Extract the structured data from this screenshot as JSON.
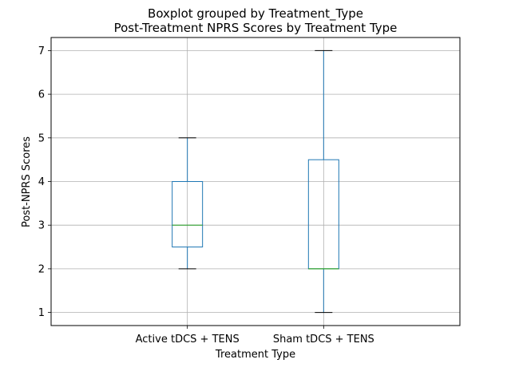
{
  "chart_data": {
    "type": "boxplot",
    "suptitle": "Boxplot grouped by Treatment_Type",
    "title": "Post-Treatment NPRS Scores by Treatment Type",
    "xlabel": "Treatment Type",
    "ylabel": "Post-NPRS Scores",
    "ylim": [
      0.7,
      7.3
    ],
    "yticks": [
      1,
      2,
      3,
      4,
      5,
      6,
      7
    ],
    "grid": true,
    "categories": [
      "Active tDCS + TENS",
      "Sham tDCS + TENS"
    ],
    "boxes": [
      {
        "category": "Active tDCS + TENS",
        "whisker_low": 2,
        "q1": 2.5,
        "median": 3,
        "q3": 4,
        "whisker_high": 5
      },
      {
        "category": "Sham tDCS + TENS",
        "whisker_low": 1,
        "q1": 2,
        "median": 2,
        "q3": 4.5,
        "whisker_high": 7
      }
    ],
    "colors": {
      "box": "#1f77b4",
      "median": "#2ca02c",
      "cap": "#000000",
      "grid": "#b0b0b0"
    }
  }
}
